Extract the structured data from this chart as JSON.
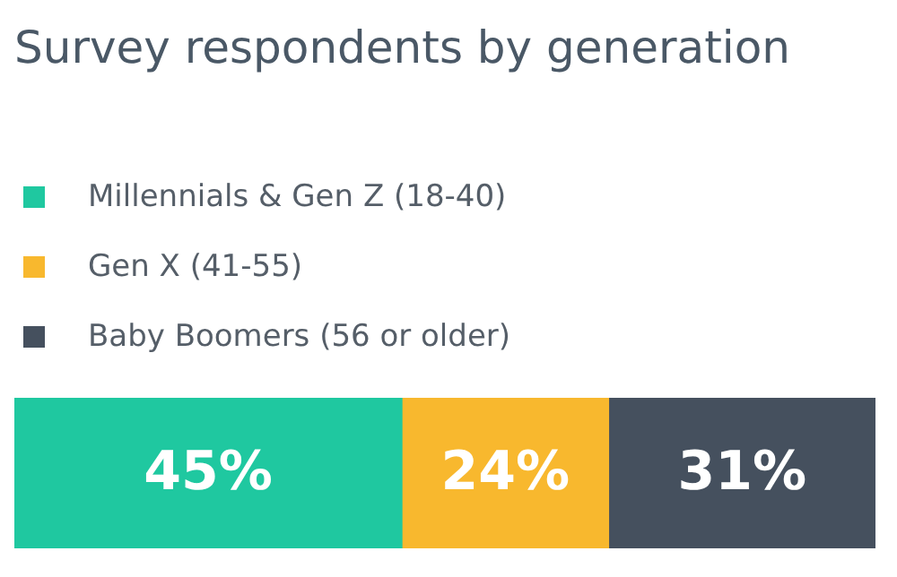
{
  "chart_data": {
    "type": "bar",
    "title": "Survey respondents by generation",
    "orientation": "horizontal",
    "stacked": true,
    "categories": [
      null
    ],
    "tick_labels": false,
    "legend": "top left",
    "series": [
      {
        "name": "Millennials & Gen Z (18-40)",
        "color": "#1fc8a0",
        "values": [
          45
        ],
        "value_labels": [
          "45%"
        ]
      },
      {
        "name": "Gen X (41-55)",
        "color": "#f8b82e",
        "values": [
          24
        ],
        "value_labels": [
          "24%"
        ]
      },
      {
        "name": "Baby Boomers (56 or older)",
        "color": "#45505e",
        "values": [
          31
        ],
        "value_labels": [
          "31%"
        ]
      }
    ]
  }
}
